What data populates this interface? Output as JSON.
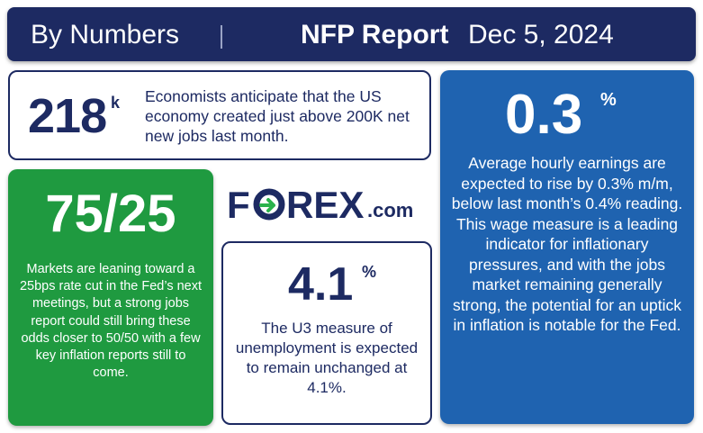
{
  "header": {
    "left_label": "By Numbers",
    "title": "NFP Report",
    "date": "Dec 5, 2024"
  },
  "card_jobs": {
    "value": "218",
    "suffix": "k",
    "text": "Economists anticipate that the US economy created just above 200K net new jobs last month."
  },
  "card_fed": {
    "value": "75/25",
    "text": "Markets are leaning toward a 25bps rate cut in the Fed’s next meetings, but a strong jobs report could still bring these odds closer to 50/50 with a few key inflation reports still to come."
  },
  "logo": {
    "main": "FOREX",
    "domain": ".com"
  },
  "card_unemployment": {
    "value": "4.1",
    "suffix": "%",
    "text": "The U3 measure of unemployment is expected to remain unchanged at 4.1%."
  },
  "card_earnings": {
    "value": "0.3",
    "suffix": "%",
    "text": "Average hourly earnings are expected to rise by 0.3% m/m, below last month’s 0.4% reading. This wage measure is a leading indicator for inflationary pressures, and with the jobs market remaining generally strong, the potential for an uptick in inflation is notable for the Fed."
  },
  "colors": {
    "navy": "#1d2a62",
    "green": "#1f9a40",
    "blue": "#1f63b0",
    "logo_accent": "#2bb24c"
  }
}
